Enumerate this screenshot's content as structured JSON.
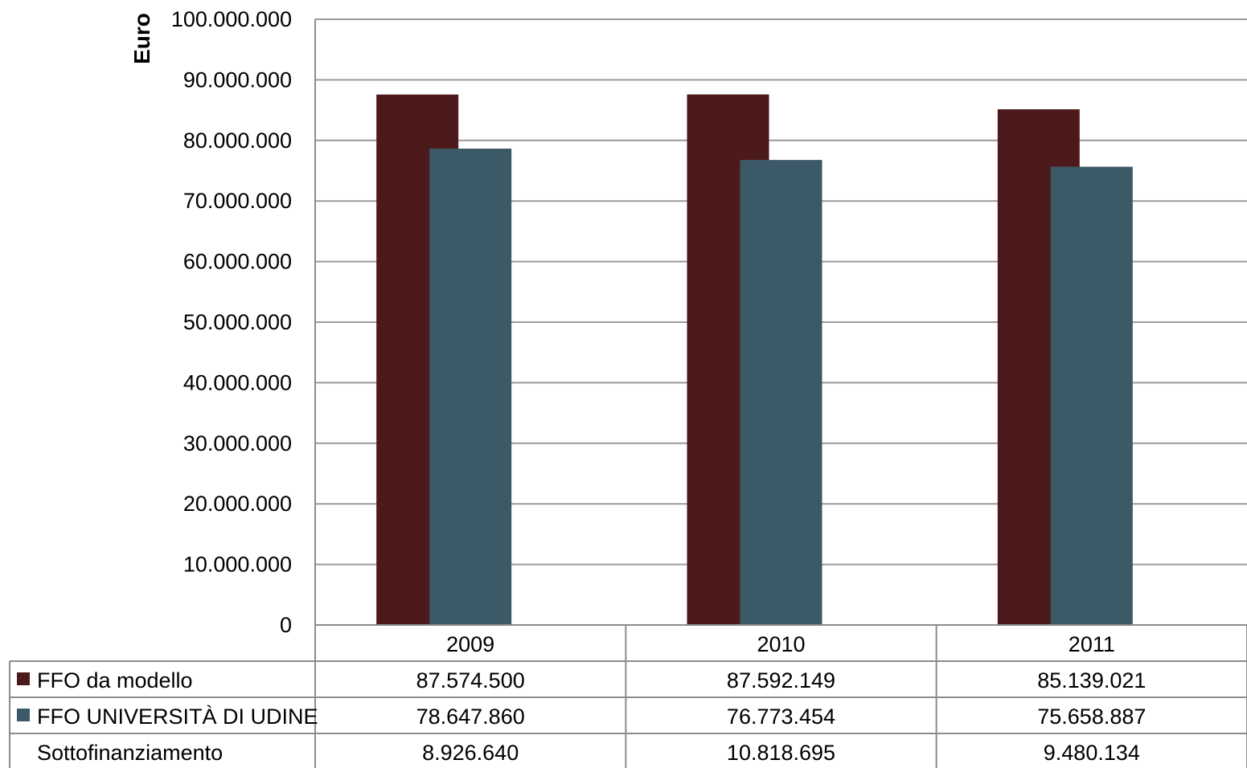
{
  "chart_data": {
    "type": "bar",
    "ylabel": "Euro",
    "ylim": [
      0,
      100000000
    ],
    "yticks": [
      "0",
      "10.000.000",
      "20.000.000",
      "30.000.000",
      "40.000.000",
      "50.000.000",
      "60.000.000",
      "70.000.000",
      "80.000.000",
      "90.000.000",
      "100.000.000"
    ],
    "categories": [
      "2009",
      "2010",
      "2011"
    ],
    "grid": true,
    "series": [
      {
        "name": "FFO da modello",
        "color": "#4c1a1a",
        "values": [
          87574500,
          87592149,
          85139021
        ],
        "labels": [
          "87.574.500",
          "87.592.149",
          "85.139.021"
        ]
      },
      {
        "name": "FFO UNIVERSITÀ DI UDINE",
        "color": "#3b5966",
        "values": [
          78647860,
          76773454,
          75658887
        ],
        "labels": [
          "78.647.860",
          "76.773.454",
          "75.658.887"
        ]
      }
    ],
    "table_extra_rows": [
      {
        "name": "Sottofinanziamento",
        "values": [
          8926640,
          10818695,
          9480134
        ],
        "labels": [
          "8.926.640",
          "10.818.695",
          "9.480.134"
        ]
      }
    ]
  }
}
